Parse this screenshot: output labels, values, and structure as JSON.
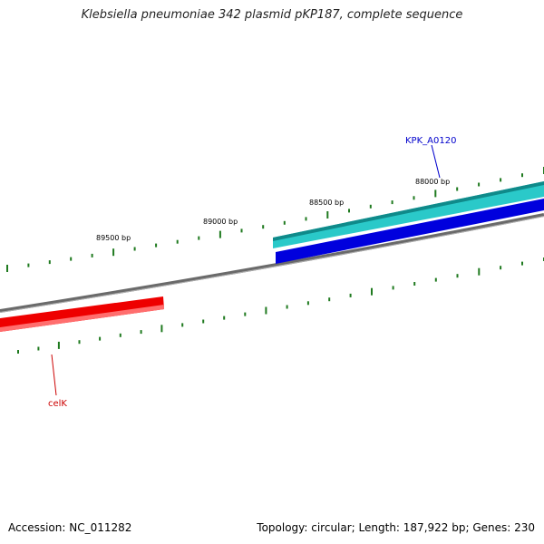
{
  "title": "Klebsiella pneumoniae 342 plasmid pKP187, complete sequence",
  "footer": {
    "accession": "Accession: NC_011282",
    "summary": "Topology: circular; Length: 187,922 bp; Genes: 230"
  },
  "ticks": {
    "labels": [
      "89500 bp",
      "89000 bp",
      "88500 bp",
      "88000 bp"
    ],
    "color": "#1f7a1f"
  },
  "genes": [
    {
      "name": "KPK_A0120",
      "color": "#0000cc"
    },
    {
      "name": "celK",
      "color": "#cc0000"
    }
  ],
  "colors": {
    "backbone": "#808080",
    "cyan_gene": "#1fb8b8",
    "blue_gene": "#0000e0",
    "red_gene": "#ee0000"
  }
}
